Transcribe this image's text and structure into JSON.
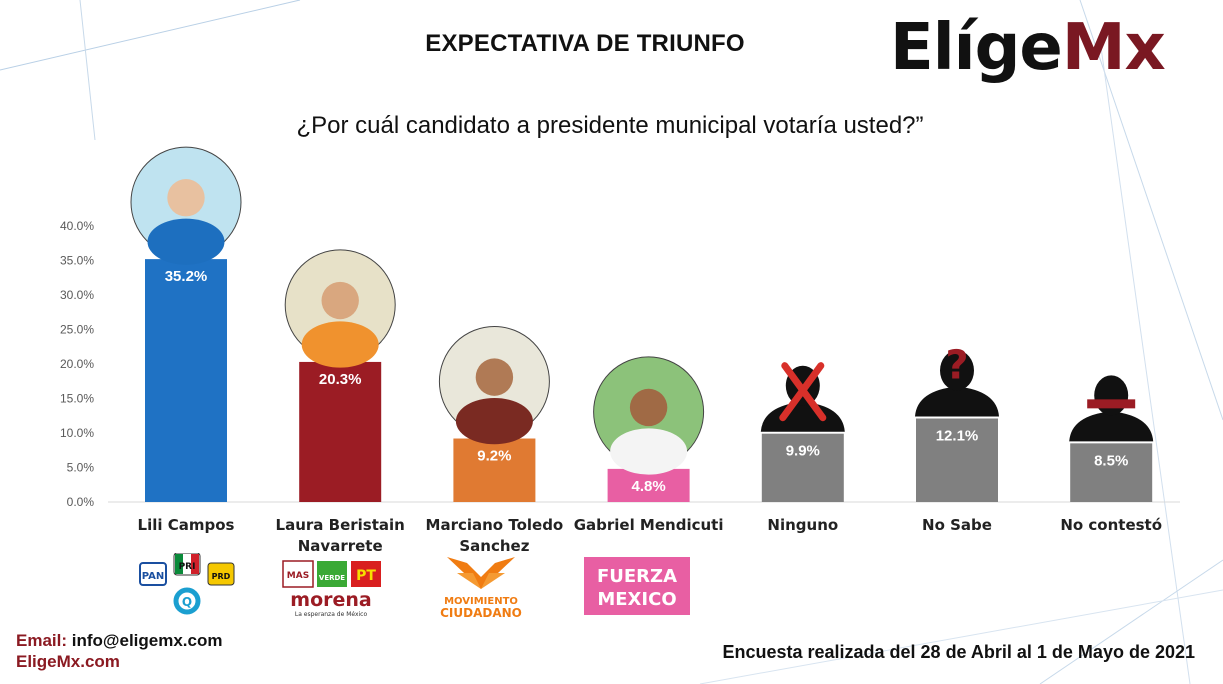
{
  "header": {
    "title": "EXPECTATIVA DE TRIUNFO",
    "brand_part1": "Elíge",
    "brand_part2": "Mx",
    "question": "¿Por cuál candidato a presidente municipal votaría usted?”"
  },
  "chart_data": {
    "type": "bar",
    "categories": [
      "Lili Campos",
      "Laura Beristain Navarrete",
      "Marciano Toledo Sanchez",
      "Gabriel Mendicuti",
      "Ninguno",
      "No Sabe",
      "No contestó"
    ],
    "category_lines": [
      [
        "Lili Campos"
      ],
      [
        "Laura Beristain",
        "Navarrete"
      ],
      [
        "Marciano Toledo",
        "Sanchez"
      ],
      [
        "Gabriel Mendicuti"
      ],
      [
        "Ninguno"
      ],
      [
        "No Sabe"
      ],
      [
        "No contestó"
      ]
    ],
    "values": [
      35.2,
      20.3,
      9.2,
      4.8,
      9.9,
      12.1,
      8.5
    ],
    "value_labels": [
      "35.2%",
      "20.3%",
      "9.2%",
      "4.8%",
      "9.9%",
      "12.1%",
      "8.5%"
    ],
    "colors": [
      "#1f72c4",
      "#9b1c24",
      "#e07a32",
      "#e85fa3",
      "#808080",
      "#808080",
      "#808080"
    ],
    "yticks": [
      "0.0%",
      "5.0%",
      "10.0%",
      "15.0%",
      "20.0%",
      "25.0%",
      "30.0%",
      "35.0%",
      "40.0%"
    ],
    "ylim": [
      0,
      40
    ],
    "grid": false,
    "title": "EXPECTATIVA DE TRIUNFO",
    "xlabel": "",
    "ylabel": ""
  },
  "party_logos": {
    "lili": [
      "PAN",
      "PRI",
      "PRD",
      "Q"
    ],
    "laura": [
      "MAS",
      "VERDE",
      "PT",
      "morena",
      "La esperanza de México"
    ],
    "marciano": [
      "MOVIMIENTO",
      "CIUDADANO"
    ],
    "gabriel": [
      "FUERZA",
      "MEXICO"
    ]
  },
  "footer": {
    "email_label": "Email:",
    "email_value": "info@eligemx.com",
    "site": "EligeMx.com",
    "survey_note": "Encuesta realizada del 28 de Abril al 1 de Mayo de 2021"
  }
}
